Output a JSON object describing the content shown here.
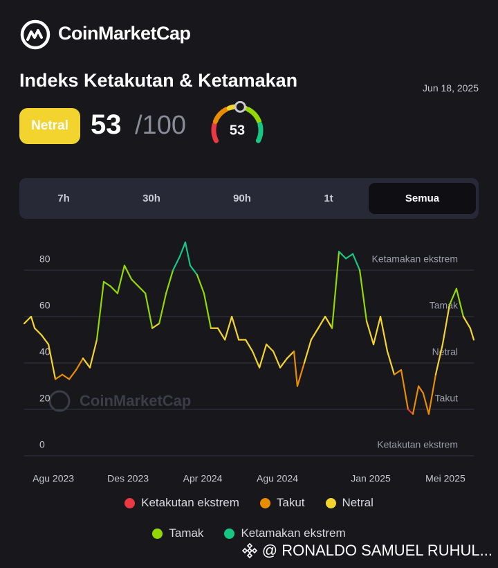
{
  "header": {
    "brand": "CoinMarketCap",
    "title": "Indeks Ketakutan & Ketamakan",
    "date": "Jun 18, 2025",
    "status": "Netral",
    "score": 53,
    "max_label": "/100"
  },
  "tabs": {
    "items": [
      "7h",
      "30h",
      "90h",
      "1t",
      "Semua"
    ],
    "active": 4
  },
  "watermark": "CoinMarketCap",
  "credit": "@ RONALDO SAMUEL RUHUL...",
  "chart_data": {
    "type": "line",
    "x": [
      -1.56,
      -1.19,
      -1.0,
      -0.63,
      -0.26,
      0.11,
      0.48,
      0.85,
      1.22,
      1.59,
      1.96,
      2.33,
      2.7,
      3.07,
      3.44,
      3.81,
      4.19,
      4.56,
      4.93,
      5.3,
      5.67,
      6.04,
      6.41,
      6.78,
      7.07,
      7.33,
      7.7,
      8.07,
      8.44,
      8.81,
      9.19,
      9.56,
      9.93,
      10.3,
      10.67,
      11.04,
      11.41,
      11.78,
      12.15,
      12.52,
      12.89,
      13.07,
      13.44,
      13.81,
      14.19,
      14.56,
      14.93,
      15.3,
      15.67,
      16.04,
      16.41,
      16.78,
      17.15,
      17.52,
      17.89,
      18.26,
      18.63,
      19.0,
      19.26,
      19.56,
      19.81,
      20.11,
      20.48,
      20.85,
      21.22,
      21.59,
      21.96,
      22.33,
      22.52
    ],
    "series": [
      {
        "name": "Indeks Ketakutan & Ketamakan",
        "values": [
          57,
          60,
          55,
          52,
          48,
          33,
          35,
          33,
          37,
          42,
          38,
          50,
          75,
          73,
          70,
          82,
          76,
          73,
          70,
          55,
          57,
          70,
          80,
          86,
          92,
          82,
          78,
          70,
          55,
          55,
          50,
          60,
          50,
          50,
          45,
          38,
          48,
          45,
          38,
          42,
          45,
          30,
          40,
          50,
          55,
          60,
          55,
          88,
          85,
          87,
          80,
          58,
          48,
          60,
          45,
          35,
          37,
          20,
          18,
          30,
          27,
          18,
          35,
          48,
          65,
          72,
          60,
          55,
          50
        ]
      }
    ],
    "zones": [
      {
        "name": "Ketakutan ekstrem",
        "color": "#ea3943"
      },
      {
        "name": "Takut",
        "color": "#ea8c00"
      },
      {
        "name": "Netral",
        "color": "#f3d42f"
      },
      {
        "name": "Tamak",
        "color": "#93d900"
      },
      {
        "name": "Ketamakan ekstrem",
        "color": "#16c784"
      }
    ],
    "xlim": [
      -1.56,
      22.52
    ],
    "xticks": [
      {
        "value": 0,
        "label": "Agu 2023"
      },
      {
        "value": 4,
        "label": "Des 2023"
      },
      {
        "value": 8,
        "label": "Apr 2024"
      },
      {
        "value": 12,
        "label": "Agu 2024"
      },
      {
        "value": 17,
        "label": "Jan 2025"
      },
      {
        "value": 21,
        "label": "Mei 2025"
      }
    ],
    "ylim": [
      0,
      100
    ],
    "yticks": [
      0,
      20,
      40,
      60,
      80
    ],
    "grid": true
  }
}
